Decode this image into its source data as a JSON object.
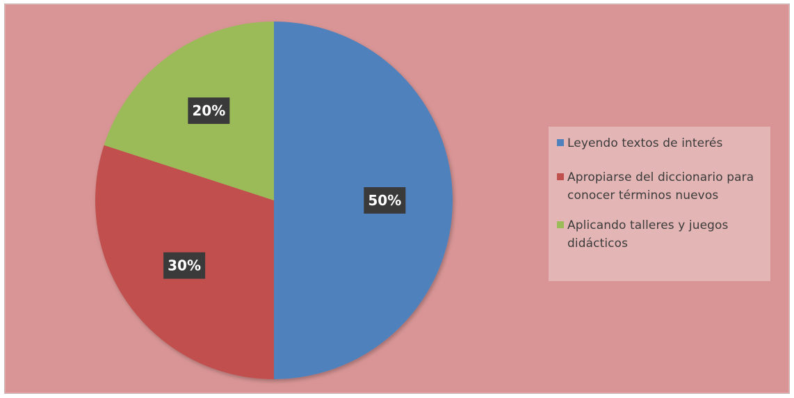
{
  "chart_data": {
    "type": "pie",
    "title": "",
    "slices": [
      {
        "label": "Leyendo textos de interés",
        "value": 50,
        "display": "50%",
        "color": "#4f81bd"
      },
      {
        "label": "Apropiarse del diccionario para conocer términos nuevos",
        "value": 30,
        "display": "30%",
        "color": "#c0504d"
      },
      {
        "label": "Aplicando talleres y juegos didácticos",
        "value": 20,
        "display": "20%",
        "color": "#9bbb59"
      }
    ],
    "legend_position": "right",
    "background_color": "#d99595",
    "legend_background_color": "#e4b5b5"
  }
}
